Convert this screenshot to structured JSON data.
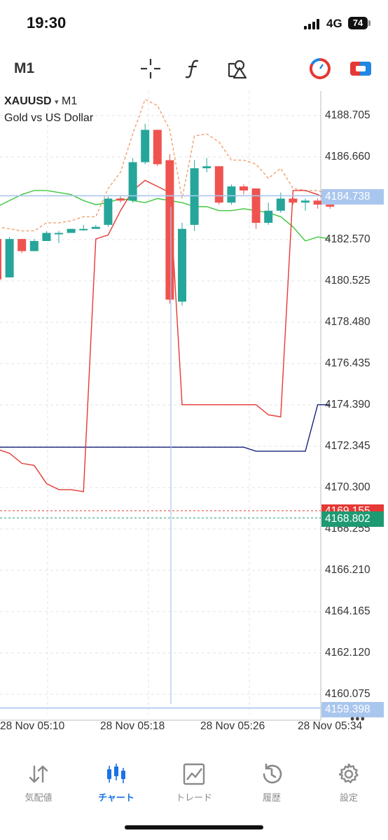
{
  "status": {
    "time": "19:30",
    "network": "4G",
    "battery": "74"
  },
  "toolbar": {
    "timeframe": "M1",
    "icons": [
      "crosshair-icon",
      "function-icon",
      "objects-icon",
      "market-icon",
      "trade-swap-icon"
    ]
  },
  "chart": {
    "symbol": "XAUUSD",
    "dropdown": "▾",
    "timeframe": "M1",
    "description": "Gold vs US Dollar",
    "price_levels": [
      "4188.705",
      "4186.660",
      "4182.570",
      "4180.525",
      "4178.480",
      "4176.435",
      "4174.390",
      "4172.345",
      "4170.300",
      "4168.255",
      "4166.210",
      "4164.165",
      "4162.120",
      "4160.075"
    ],
    "tags": {
      "crosshair_top": "4184.738",
      "ask": "4169.155",
      "bid": "4168.802",
      "crosshair_bottom": "4159.398"
    },
    "time_labels": [
      "28 Nov 05:10",
      "28 Nov 05:18",
      "28 Nov 05:26",
      "28 Nov 05:34"
    ],
    "more": "•••",
    "colors": {
      "bull": "#26a69a",
      "bear": "#ef5350",
      "ask": "#e53935",
      "bid": "#1e9a72",
      "crosshair": "#a9c6ee"
    }
  },
  "chart_data": {
    "type": "candlestick",
    "symbol": "XAUUSD",
    "timeframe": "M1",
    "ylim": [
      4159.0,
      4190.0
    ],
    "candles": [
      {
        "o": 4182.6,
        "h": 4182.8,
        "l": 4180.5,
        "c": 4180.6
      },
      {
        "o": 4180.7,
        "h": 4182.7,
        "l": 4180.7,
        "c": 4182.6
      },
      {
        "o": 4182.6,
        "h": 4182.6,
        "l": 4181.9,
        "c": 4182.0
      },
      {
        "o": 4182.0,
        "h": 4182.6,
        "l": 4182.0,
        "c": 4182.5
      },
      {
        "o": 4182.5,
        "h": 4183.0,
        "l": 4182.5,
        "c": 4182.9
      },
      {
        "o": 4182.9,
        "h": 4183.0,
        "l": 4182.4,
        "c": 4182.9
      },
      {
        "o": 4182.9,
        "h": 4183.1,
        "l": 4182.9,
        "c": 4183.1
      },
      {
        "o": 4183.1,
        "h": 4183.3,
        "l": 4183.0,
        "c": 4183.1
      },
      {
        "o": 4183.1,
        "h": 4183.3,
        "l": 4183.1,
        "c": 4183.2
      },
      {
        "o": 4183.3,
        "h": 4184.7,
        "l": 4183.2,
        "c": 4184.6
      },
      {
        "o": 4184.6,
        "h": 4184.7,
        "l": 4184.4,
        "c": 4184.5
      },
      {
        "o": 4184.5,
        "h": 4186.6,
        "l": 4184.4,
        "c": 4186.4
      },
      {
        "o": 4186.4,
        "h": 4188.3,
        "l": 4186.3,
        "c": 4188.0
      },
      {
        "o": 4188.0,
        "h": 4188.0,
        "l": 4186.2,
        "c": 4186.3
      },
      {
        "o": 4186.5,
        "h": 4186.8,
        "l": 4179.4,
        "c": 4179.6
      },
      {
        "o": 4179.5,
        "h": 4183.4,
        "l": 4179.3,
        "c": 4183.1
      },
      {
        "o": 4183.3,
        "h": 4186.5,
        "l": 4183.0,
        "c": 4186.1
      },
      {
        "o": 4186.1,
        "h": 4186.6,
        "l": 4185.9,
        "c": 4186.2
      },
      {
        "o": 4186.2,
        "h": 4186.2,
        "l": 4184.3,
        "c": 4184.4
      },
      {
        "o": 4184.4,
        "h": 4185.3,
        "l": 4184.3,
        "c": 4185.2
      },
      {
        "o": 4185.2,
        "h": 4185.3,
        "l": 4184.8,
        "c": 4185.0
      },
      {
        "o": 4185.1,
        "h": 4185.1,
        "l": 4183.1,
        "c": 4183.4
      },
      {
        "o": 4183.4,
        "h": 4184.4,
        "l": 4183.3,
        "c": 4184.0
      },
      {
        "o": 4184.0,
        "h": 4184.9,
        "l": 4183.9,
        "c": 4184.6
      },
      {
        "o": 4184.6,
        "h": 4184.7,
        "l": 4184.3,
        "c": 4184.4
      },
      {
        "o": 4184.4,
        "h": 4184.6,
        "l": 4184.0,
        "c": 4184.5
      },
      {
        "o": 4184.5,
        "h": 4184.6,
        "l": 4184.1,
        "c": 4184.3
      },
      {
        "o": 4184.3,
        "h": 4184.4,
        "l": 4184.1,
        "c": 4184.2
      }
    ],
    "indicators": {
      "red_line": [
        4172.2,
        4172.0,
        4171.5,
        4171.4,
        4170.5,
        4170.2,
        4170.2,
        4170.1,
        4182.6,
        4182.8,
        4184.0,
        4185.0,
        4185.5,
        4185.2,
        4184.9,
        4174.4,
        4174.4,
        4174.4,
        4174.4,
        4174.4,
        4174.4,
        4174.4,
        4173.9,
        4173.8,
        4185.0,
        4185.0,
        4184.8,
        4184.5
      ],
      "navy_line": [
        4172.3,
        4172.3,
        4172.3,
        4172.3,
        4172.3,
        4172.3,
        4172.3,
        4172.3,
        4172.3,
        4172.3,
        4172.3,
        4172.3,
        4172.3,
        4172.3,
        4172.3,
        4172.3,
        4172.3,
        4172.3,
        4172.3,
        4172.3,
        4172.3,
        4172.1,
        4172.1,
        4172.1,
        4172.1,
        4172.1,
        4174.4,
        4174.4
      ],
      "green_line": [
        4184.2,
        4184.5,
        4184.8,
        4185.0,
        4185.0,
        4184.9,
        4184.8,
        4184.5,
        4184.3,
        4184.4,
        4184.6,
        4184.5,
        4184.4,
        4184.6,
        4184.5,
        4184.4,
        4184.2,
        4184.2,
        4184.0,
        4184.0,
        4184.1,
        4184.0,
        4183.9,
        4183.7,
        4183.2,
        4182.5,
        4182.7,
        4182.6
      ]
    },
    "xlabels": [
      "28 Nov 05:10",
      "28 Nov 05:18",
      "28 Nov 05:26",
      "28 Nov 05:34"
    ]
  },
  "tabs": [
    {
      "label": "気配値",
      "icon": "quotes-icon"
    },
    {
      "label": "チャート",
      "icon": "chart-candles-icon"
    },
    {
      "label": "トレード",
      "icon": "trade-icon"
    },
    {
      "label": "履歴",
      "icon": "history-icon"
    },
    {
      "label": "設定",
      "icon": "settings-icon"
    }
  ]
}
